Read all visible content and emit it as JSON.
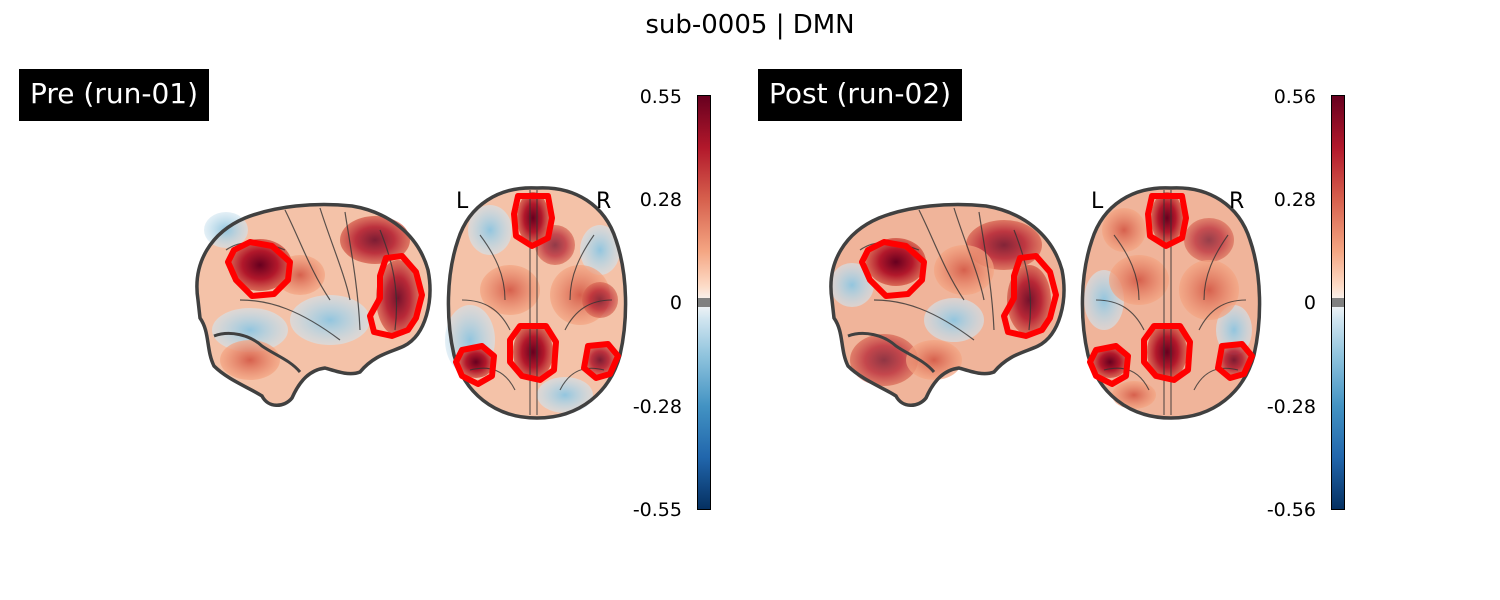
{
  "figure": {
    "title": "sub-0005 | DMN"
  },
  "panels": [
    {
      "label": "Pre (run-01)",
      "left_marker": "L",
      "right_marker": "R",
      "colorbar": {
        "ticks": [
          "0.55",
          "0.28",
          "0",
          "-0.28",
          "-0.55"
        ],
        "vmin": -0.55,
        "vmax": 0.55,
        "colormap": "RdBu_r"
      }
    },
    {
      "label": "Post (run-02)",
      "left_marker": "L",
      "right_marker": "R",
      "colorbar": {
        "ticks": [
          "0.56",
          "0.28",
          "0",
          "-0.28",
          "-0.56"
        ],
        "vmin": -0.56,
        "vmax": 0.56,
        "colormap": "RdBu_r"
      }
    }
  ],
  "colors": {
    "roi_outline": "#ff0000",
    "brain_outline": "#404040",
    "colorbar_mask": "#808080"
  }
}
